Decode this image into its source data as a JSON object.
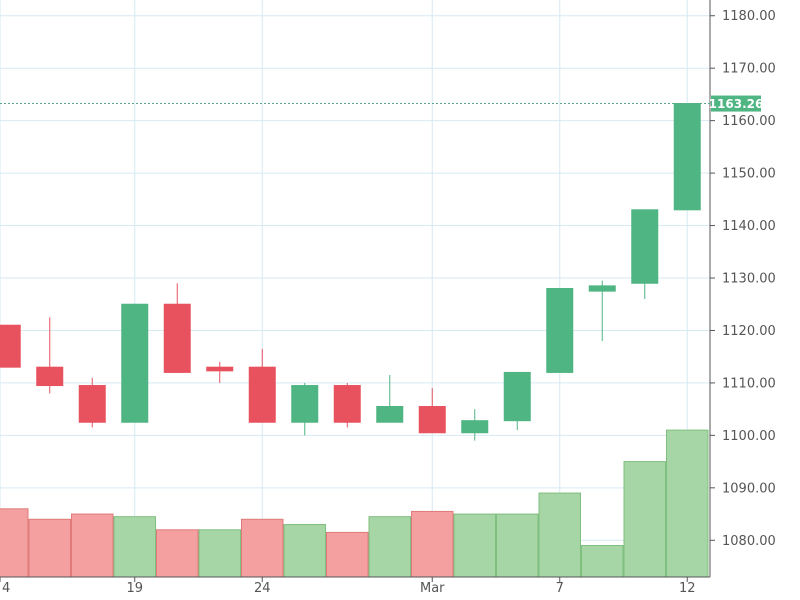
{
  "chart_data": {
    "type": "candlestick",
    "x_tick_labels": [
      "4",
      "19",
      "24",
      "Mar",
      "7",
      "12"
    ],
    "y_ticks": [
      "1080.00",
      "1090.00",
      "1100.00",
      "1110.00",
      "1120.00",
      "1130.00",
      "1140.00",
      "1150.00",
      "1160.00",
      "1170.00",
      "1180.00"
    ],
    "ylim": [
      1073,
      1183
    ],
    "last_price": "1163.26",
    "grid": true,
    "colors": {
      "up": "#4fb582",
      "down": "#e8525f",
      "volume_up": "#a6d6a6",
      "volume_down": "#f5a0a0",
      "grid": "#d6eaf2",
      "price_line": "#5aaa8a",
      "price_tag": "#4fb582"
    },
    "candles": [
      {
        "o": 1121,
        "h": 1121,
        "l": 1113,
        "c": 1113
      },
      {
        "o": 1113,
        "h": 1122.5,
        "l": 1108,
        "c": 1109.5
      },
      {
        "o": 1109.5,
        "h": 1111,
        "l": 1101.5,
        "c": 1102.5
      },
      {
        "o": 1102.5,
        "h": 1125,
        "l": 1102.5,
        "c": 1125
      },
      {
        "o": 1125,
        "h": 1129,
        "l": 1112,
        "c": 1112
      },
      {
        "o": 1113,
        "h": 1114,
        "l": 1110,
        "c": 1112.3
      },
      {
        "o": 1113,
        "h": 1116.5,
        "l": 1102.5,
        "c": 1102.5
      },
      {
        "o": 1102.5,
        "h": 1110,
        "l": 1100,
        "c": 1109.5
      },
      {
        "o": 1109.5,
        "h": 1110,
        "l": 1101.5,
        "c": 1102.5
      },
      {
        "o": 1102.5,
        "h": 1111.5,
        "l": 1102.5,
        "c": 1105.5
      },
      {
        "o": 1105.5,
        "h": 1109,
        "l": 1100.5,
        "c": 1100.5
      },
      {
        "o": 1100.5,
        "h": 1105,
        "l": 1099,
        "c": 1102.8
      },
      {
        "o": 1102.8,
        "h": 1112,
        "l": 1101,
        "c": 1112
      },
      {
        "o": 1112,
        "h": 1128,
        "l": 1112,
        "c": 1128
      },
      {
        "o": 1127.5,
        "h": 1129.5,
        "l": 1118,
        "c": 1128.5
      },
      {
        "o": 1129,
        "h": 1143,
        "l": 1126,
        "c": 1143
      },
      {
        "o": 1143,
        "h": 1163.26,
        "l": 1143,
        "c": 1163.26
      }
    ],
    "volume": [
      {
        "v": 1086,
        "dir": "down"
      },
      {
        "v": 1084,
        "dir": "down"
      },
      {
        "v": 1085,
        "dir": "down"
      },
      {
        "v": 1084.5,
        "dir": "up"
      },
      {
        "v": 1082,
        "dir": "down"
      },
      {
        "v": 1082,
        "dir": "up"
      },
      {
        "v": 1084,
        "dir": "down"
      },
      {
        "v": 1083,
        "dir": "up"
      },
      {
        "v": 1081.5,
        "dir": "down"
      },
      {
        "v": 1084.5,
        "dir": "up"
      },
      {
        "v": 1085.5,
        "dir": "down"
      },
      {
        "v": 1085,
        "dir": "up"
      },
      {
        "v": 1085,
        "dir": "up"
      },
      {
        "v": 1089,
        "dir": "up"
      },
      {
        "v": 1079,
        "dir": "up"
      },
      {
        "v": 1095,
        "dir": "up"
      },
      {
        "v": 1101,
        "dir": "up"
      }
    ]
  }
}
